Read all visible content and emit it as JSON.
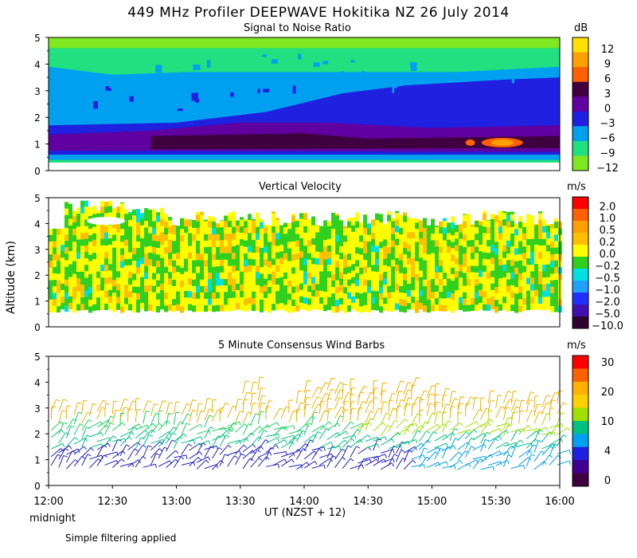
{
  "title": "449 MHz Profiler DEEPWAVE Hokitika NZ 26 July 2014",
  "y_axis_label": "Altitude (km)",
  "x_axis_label": "UT  (NZST + 12)",
  "x_sub_label": "midnight",
  "footnote": "Simple filtering applied",
  "chart_data": [
    {
      "type": "heatmap",
      "title": "Signal to Noise Ratio",
      "units": "dB",
      "ylim": [
        0,
        5
      ],
      "y_ticks": [
        "0",
        "1",
        "2",
        "3",
        "4",
        "5"
      ],
      "colorbar": {
        "labels": [
          "12",
          "9",
          "6",
          "3",
          "0",
          "−3",
          "−6",
          "−9",
          "−12"
        ],
        "colors": [
          "#ffe000",
          "#ffa000",
          "#ff6000",
          "#400040",
          "#6000a0",
          "#2020e0",
          "#00a0f0",
          "#20e080",
          "#80e820"
        ]
      },
      "description_values": {
        "x_range_hours": [
          12,
          16
        ]
      }
    },
    {
      "type": "heatmap",
      "title": "Vertical Velocity",
      "units": "m/s",
      "ylim": [
        0,
        5
      ],
      "y_ticks": [
        "0",
        "1",
        "2",
        "3",
        "4",
        "5"
      ],
      "colorbar": {
        "labels": [
          "2.0",
          "1.0",
          "0.5",
          "0.2",
          "0.0",
          "−0.2",
          "−0.5",
          "−1.0",
          "−2.0",
          "−5.0",
          "−10.0"
        ],
        "colors": [
          "#ff0000",
          "#ff6000",
          "#ffa000",
          "#ffc000",
          "#ffff00",
          "#30d020",
          "#00e0e0",
          "#20a0ff",
          "#2030ff",
          "#4010b0",
          "#300030"
        ]
      }
    },
    {
      "type": "wind_barbs",
      "title": "5 Minute Consensus Wind Barbs",
      "units": "m/s",
      "ylim": [
        0,
        5
      ],
      "y_ticks": [
        "0",
        "1",
        "2",
        "3",
        "4",
        "5"
      ],
      "colorbar": {
        "labels": [
          "30",
          "20",
          "10",
          "4",
          "0"
        ],
        "colors": [
          "#ff0000",
          "#ff6000",
          "#ffb000",
          "#ffd000",
          "#a0e000",
          "#00c080",
          "#00a0f0",
          "#2020e0",
          "#400090",
          "#400040"
        ]
      }
    }
  ],
  "x_ticks": [
    "12:00",
    "12:30",
    "13:00",
    "13:30",
    "14:00",
    "14:30",
    "15:00",
    "15:30",
    "16:00"
  ]
}
